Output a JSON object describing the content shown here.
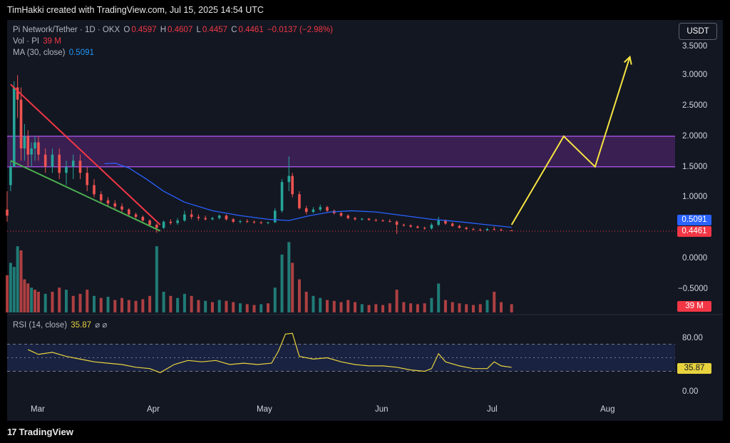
{
  "header": {
    "credit": "TimHakki created with TradingView.com, Jul 15, 2025 14:54 UTC"
  },
  "legend": {
    "symbol": "Pi Network/Tether · 1D · OKX",
    "open_label": "O",
    "open": "0.4597",
    "high_label": "H",
    "high": "0.4607",
    "low_label": "L",
    "low": "0.4457",
    "close_label": "C",
    "close": "0.4461",
    "change": "−0.0137 (−2.98%)",
    "vol_label": "Vol · PI",
    "vol_value": "39 M",
    "ma_label": "MA (30, close)",
    "ma_value": "0.5091",
    "rsi_label": "RSI (14, close)",
    "rsi_value": "35.87",
    "rsi_icons": "⌀ ⌀"
  },
  "currency_button": "USDT",
  "price_axis": [
    "3.5000",
    "3.0000",
    "2.5000",
    "2.0000",
    "1.5000",
    "1.0000",
    "0.0000",
    "−0.5000"
  ],
  "rsi_axis": [
    "80.00",
    "0.00"
  ],
  "tags": {
    "ma": "0.5091",
    "close": "0.4461",
    "volume": "39 M",
    "rsi": "35.87"
  },
  "time_axis": [
    "Mar",
    "Apr",
    "May",
    "Jun",
    "Jul",
    "Aug"
  ],
  "colors": {
    "up": "#26a69a",
    "down": "#ef5350",
    "ma": "#2962ff",
    "rsi": "#e8d33f",
    "zone": "#6a2a8f",
    "projection": "#f5e342",
    "wedge_top": "#f23645",
    "wedge_bottom": "#4caf50"
  },
  "footer": {
    "brand": "TradingView",
    "brand_icon": "17"
  },
  "chart_data": {
    "type": "candlestick",
    "symbol": "Pi Network/Tether",
    "interval": "1D",
    "x_range": [
      "2025-02-20",
      "2025-08-31"
    ],
    "y_range": [
      -0.75,
      3.75
    ],
    "zone": [
      1.5,
      2.0
    ],
    "projection_points": [
      [
        "2025-07-15",
        0.55
      ],
      [
        "2025-07-30",
        2.0
      ],
      [
        "2025-08-08",
        1.5
      ],
      [
        "2025-08-18",
        3.3
      ]
    ],
    "wedge_top": [
      [
        "2025-02-21",
        2.85
      ],
      [
        "2025-04-05",
        0.55
      ]
    ],
    "wedge_bottom": [
      [
        "2025-02-21",
        1.6
      ],
      [
        "2025-04-05",
        0.45
      ]
    ],
    "rsi_range": [
      0,
      100
    ],
    "rsi_bands": [
      70,
      50,
      30
    ],
    "candles": [
      [
        "2025-02-20",
        0.8,
        1.1,
        0.6,
        0.7
      ],
      [
        "2025-02-21",
        1.2,
        1.6,
        1.1,
        1.5
      ],
      [
        "2025-02-22",
        1.5,
        2.9,
        1.5,
        2.8
      ],
      [
        "2025-02-23",
        2.8,
        3.0,
        2.3,
        2.6
      ],
      [
        "2025-02-24",
        2.6,
        2.8,
        1.6,
        1.8
      ],
      [
        "2025-02-25",
        1.8,
        2.2,
        1.6,
        2.0
      ],
      [
        "2025-02-26",
        2.0,
        2.1,
        1.5,
        1.7
      ],
      [
        "2025-02-27",
        1.7,
        1.9,
        1.5,
        1.8
      ],
      [
        "2025-02-28",
        1.8,
        2.0,
        1.6,
        1.9
      ],
      [
        "2025-03-01",
        1.9,
        2.0,
        1.6,
        1.7
      ],
      [
        "2025-03-03",
        1.7,
        1.8,
        1.4,
        1.5
      ],
      [
        "2025-03-05",
        1.5,
        1.8,
        1.4,
        1.7
      ],
      [
        "2025-03-07",
        1.7,
        1.8,
        1.3,
        1.4
      ],
      [
        "2025-03-09",
        1.4,
        1.6,
        1.2,
        1.5
      ],
      [
        "2025-03-11",
        1.5,
        1.7,
        1.3,
        1.6
      ],
      [
        "2025-03-13",
        1.6,
        1.7,
        1.3,
        1.4
      ],
      [
        "2025-03-15",
        1.4,
        1.5,
        1.1,
        1.2
      ],
      [
        "2025-03-17",
        1.2,
        1.3,
        1.0,
        1.05
      ],
      [
        "2025-03-19",
        1.05,
        1.1,
        0.9,
        0.95
      ],
      [
        "2025-03-21",
        0.95,
        1.0,
        0.85,
        0.9
      ],
      [
        "2025-03-23",
        0.9,
        0.95,
        0.8,
        0.85
      ],
      [
        "2025-03-25",
        0.85,
        0.9,
        0.75,
        0.8
      ],
      [
        "2025-03-27",
        0.8,
        0.82,
        0.7,
        0.72
      ],
      [
        "2025-03-29",
        0.72,
        0.75,
        0.65,
        0.68
      ],
      [
        "2025-03-31",
        0.68,
        0.7,
        0.6,
        0.62
      ],
      [
        "2025-04-02",
        0.62,
        0.64,
        0.52,
        0.55
      ],
      [
        "2025-04-04",
        0.55,
        0.57,
        0.42,
        0.5
      ],
      [
        "2025-04-06",
        0.5,
        0.62,
        0.48,
        0.6
      ],
      [
        "2025-04-08",
        0.6,
        0.64,
        0.55,
        0.58
      ],
      [
        "2025-04-10",
        0.58,
        0.66,
        0.55,
        0.62
      ],
      [
        "2025-04-12",
        0.62,
        0.78,
        0.6,
        0.72
      ],
      [
        "2025-04-14",
        0.72,
        0.8,
        0.64,
        0.68
      ],
      [
        "2025-04-16",
        0.68,
        0.72,
        0.62,
        0.66
      ],
      [
        "2025-04-18",
        0.66,
        0.7,
        0.62,
        0.64
      ],
      [
        "2025-04-20",
        0.64,
        0.68,
        0.62,
        0.66
      ],
      [
        "2025-04-22",
        0.66,
        0.72,
        0.64,
        0.7
      ],
      [
        "2025-04-24",
        0.7,
        0.72,
        0.62,
        0.64
      ],
      [
        "2025-04-26",
        0.64,
        0.66,
        0.58,
        0.6
      ],
      [
        "2025-04-28",
        0.6,
        0.63,
        0.57,
        0.61
      ],
      [
        "2025-04-30",
        0.61,
        0.64,
        0.58,
        0.6
      ],
      [
        "2025-05-02",
        0.6,
        0.62,
        0.57,
        0.59
      ],
      [
        "2025-05-04",
        0.59,
        0.61,
        0.56,
        0.58
      ],
      [
        "2025-05-06",
        0.58,
        0.6,
        0.56,
        0.59
      ],
      [
        "2025-05-08",
        0.59,
        0.82,
        0.58,
        0.78
      ],
      [
        "2025-05-10",
        0.78,
        1.3,
        0.75,
        1.25
      ],
      [
        "2025-05-12",
        1.25,
        1.67,
        1.1,
        1.35
      ],
      [
        "2025-05-13",
        1.35,
        1.4,
        1.0,
        1.05
      ],
      [
        "2025-05-15",
        1.05,
        1.1,
        0.8,
        0.82
      ],
      [
        "2025-05-17",
        0.82,
        0.86,
        0.72,
        0.76
      ],
      [
        "2025-05-19",
        0.76,
        0.84,
        0.74,
        0.8
      ],
      [
        "2025-05-21",
        0.8,
        0.88,
        0.77,
        0.84
      ],
      [
        "2025-05-23",
        0.84,
        0.86,
        0.76,
        0.78
      ],
      [
        "2025-05-25",
        0.78,
        0.8,
        0.72,
        0.74
      ],
      [
        "2025-05-27",
        0.74,
        0.76,
        0.68,
        0.7
      ],
      [
        "2025-05-29",
        0.7,
        0.72,
        0.64,
        0.66
      ],
      [
        "2025-05-31",
        0.66,
        0.68,
        0.62,
        0.64
      ],
      [
        "2025-06-02",
        0.64,
        0.66,
        0.62,
        0.65
      ],
      [
        "2025-06-04",
        0.65,
        0.66,
        0.62,
        0.63
      ],
      [
        "2025-06-06",
        0.63,
        0.65,
        0.6,
        0.62
      ],
      [
        "2025-06-08",
        0.62,
        0.64,
        0.6,
        0.61
      ],
      [
        "2025-06-10",
        0.61,
        0.64,
        0.59,
        0.6
      ],
      [
        "2025-06-12",
        0.6,
        0.62,
        0.4,
        0.55
      ],
      [
        "2025-06-14",
        0.55,
        0.57,
        0.52,
        0.54
      ],
      [
        "2025-06-16",
        0.54,
        0.56,
        0.5,
        0.52
      ],
      [
        "2025-06-18",
        0.52,
        0.54,
        0.49,
        0.5
      ],
      [
        "2025-06-20",
        0.5,
        0.52,
        0.47,
        0.49
      ],
      [
        "2025-06-22",
        0.49,
        0.58,
        0.47,
        0.55
      ],
      [
        "2025-06-24",
        0.55,
        0.68,
        0.53,
        0.62
      ],
      [
        "2025-06-26",
        0.62,
        0.64,
        0.55,
        0.57
      ],
      [
        "2025-06-28",
        0.57,
        0.59,
        0.52,
        0.53
      ],
      [
        "2025-06-30",
        0.53,
        0.55,
        0.49,
        0.5
      ],
      [
        "2025-07-02",
        0.5,
        0.52,
        0.47,
        0.48
      ],
      [
        "2025-07-04",
        0.48,
        0.5,
        0.46,
        0.47
      ],
      [
        "2025-07-06",
        0.47,
        0.49,
        0.45,
        0.46
      ],
      [
        "2025-07-08",
        0.46,
        0.5,
        0.45,
        0.48
      ],
      [
        "2025-07-10",
        0.48,
        0.52,
        0.46,
        0.47
      ],
      [
        "2025-07-12",
        0.47,
        0.49,
        0.45,
        0.46
      ],
      [
        "2025-07-15",
        0.4597,
        0.4607,
        0.4457,
        0.4461
      ]
    ],
    "ma_points": [
      [
        "2025-03-20",
        1.55
      ],
      [
        "2025-03-23",
        1.56
      ],
      [
        "2025-03-27",
        1.48
      ],
      [
        "2025-04-01",
        1.3
      ],
      [
        "2025-04-06",
        1.1
      ],
      [
        "2025-04-12",
        0.92
      ],
      [
        "2025-04-20",
        0.78
      ],
      [
        "2025-04-28",
        0.7
      ],
      [
        "2025-05-06",
        0.64
      ],
      [
        "2025-05-12",
        0.62
      ],
      [
        "2025-05-18",
        0.7
      ],
      [
        "2025-05-24",
        0.76
      ],
      [
        "2025-05-30",
        0.78
      ],
      [
        "2025-06-06",
        0.76
      ],
      [
        "2025-06-14",
        0.7
      ],
      [
        "2025-06-22",
        0.64
      ],
      [
        "2025-06-30",
        0.6
      ],
      [
        "2025-07-08",
        0.55
      ],
      [
        "2025-07-15",
        0.5091
      ]
    ],
    "volume": [
      [
        "2025-02-20",
        90,
        "down"
      ],
      [
        "2025-02-21",
        120,
        "up"
      ],
      [
        "2025-02-22",
        110,
        "up"
      ],
      [
        "2025-02-23",
        160,
        "up"
      ],
      [
        "2025-02-24",
        150,
        "down"
      ],
      [
        "2025-02-25",
        80,
        "down"
      ],
      [
        "2025-02-26",
        70,
        "down"
      ],
      [
        "2025-02-27",
        60,
        "up"
      ],
      [
        "2025-02-28",
        55,
        "down"
      ],
      [
        "2025-03-01",
        50,
        "down"
      ],
      [
        "2025-03-03",
        45,
        "up"
      ],
      [
        "2025-03-05",
        50,
        "down"
      ],
      [
        "2025-03-07",
        60,
        "down"
      ],
      [
        "2025-03-09",
        55,
        "up"
      ],
      [
        "2025-03-11",
        40,
        "down"
      ],
      [
        "2025-03-13",
        45,
        "down"
      ],
      [
        "2025-03-15",
        55,
        "down"
      ],
      [
        "2025-03-17",
        40,
        "up"
      ],
      [
        "2025-03-19",
        35,
        "down"
      ],
      [
        "2025-03-21",
        38,
        "up"
      ],
      [
        "2025-03-23",
        30,
        "down"
      ],
      [
        "2025-03-25",
        35,
        "down"
      ],
      [
        "2025-03-27",
        30,
        "down"
      ],
      [
        "2025-03-29",
        28,
        "down"
      ],
      [
        "2025-03-31",
        32,
        "down"
      ],
      [
        "2025-04-02",
        40,
        "down"
      ],
      [
        "2025-04-04",
        160,
        "up"
      ],
      [
        "2025-04-06",
        50,
        "up"
      ],
      [
        "2025-04-08",
        40,
        "down"
      ],
      [
        "2025-04-10",
        35,
        "up"
      ],
      [
        "2025-04-12",
        45,
        "up"
      ],
      [
        "2025-04-14",
        40,
        "down"
      ],
      [
        "2025-04-16",
        30,
        "down"
      ],
      [
        "2025-04-18",
        28,
        "up"
      ],
      [
        "2025-04-20",
        25,
        "down"
      ],
      [
        "2025-04-22",
        30,
        "up"
      ],
      [
        "2025-04-24",
        28,
        "down"
      ],
      [
        "2025-04-26",
        25,
        "down"
      ],
      [
        "2025-04-28",
        22,
        "up"
      ],
      [
        "2025-04-30",
        20,
        "down"
      ],
      [
        "2025-05-02",
        18,
        "down"
      ],
      [
        "2025-05-04",
        20,
        "up"
      ],
      [
        "2025-05-06",
        22,
        "down"
      ],
      [
        "2025-05-08",
        60,
        "up"
      ],
      [
        "2025-05-10",
        140,
        "up"
      ],
      [
        "2025-05-12",
        170,
        "up"
      ],
      [
        "2025-05-13",
        120,
        "down"
      ],
      [
        "2025-05-15",
        80,
        "down"
      ],
      [
        "2025-05-17",
        50,
        "down"
      ],
      [
        "2025-05-19",
        40,
        "up"
      ],
      [
        "2025-05-21",
        35,
        "up"
      ],
      [
        "2025-05-23",
        30,
        "down"
      ],
      [
        "2025-05-25",
        28,
        "down"
      ],
      [
        "2025-05-27",
        25,
        "down"
      ],
      [
        "2025-05-29",
        30,
        "down"
      ],
      [
        "2025-05-31",
        25,
        "down"
      ],
      [
        "2025-06-02",
        20,
        "up"
      ],
      [
        "2025-06-04",
        18,
        "down"
      ],
      [
        "2025-06-06",
        20,
        "down"
      ],
      [
        "2025-06-08",
        18,
        "down"
      ],
      [
        "2025-06-10",
        22,
        "down"
      ],
      [
        "2025-06-12",
        55,
        "down"
      ],
      [
        "2025-06-14",
        25,
        "down"
      ],
      [
        "2025-06-16",
        22,
        "down"
      ],
      [
        "2025-06-18",
        20,
        "down"
      ],
      [
        "2025-06-20",
        22,
        "down"
      ],
      [
        "2025-06-22",
        35,
        "up"
      ],
      [
        "2025-06-24",
        70,
        "up"
      ],
      [
        "2025-06-26",
        30,
        "down"
      ],
      [
        "2025-06-28",
        25,
        "down"
      ],
      [
        "2025-06-30",
        22,
        "down"
      ],
      [
        "2025-07-02",
        20,
        "down"
      ],
      [
        "2025-07-04",
        18,
        "down"
      ],
      [
        "2025-07-06",
        20,
        "down"
      ],
      [
        "2025-07-08",
        30,
        "up"
      ],
      [
        "2025-07-10",
        50,
        "down"
      ],
      [
        "2025-07-12",
        25,
        "down"
      ],
      [
        "2025-07-15",
        20,
        "down"
      ]
    ],
    "rsi": [
      [
        "2025-02-26",
        62
      ],
      [
        "2025-03-01",
        55
      ],
      [
        "2025-03-05",
        58
      ],
      [
        "2025-03-09",
        52
      ],
      [
        "2025-03-13",
        48
      ],
      [
        "2025-03-17",
        44
      ],
      [
        "2025-03-21",
        42
      ],
      [
        "2025-03-25",
        40
      ],
      [
        "2025-03-29",
        36
      ],
      [
        "2025-04-02",
        34
      ],
      [
        "2025-04-05",
        28
      ],
      [
        "2025-04-09",
        40
      ],
      [
        "2025-04-13",
        46
      ],
      [
        "2025-04-17",
        44
      ],
      [
        "2025-04-21",
        46
      ],
      [
        "2025-04-25",
        40
      ],
      [
        "2025-04-29",
        42
      ],
      [
        "2025-05-03",
        40
      ],
      [
        "2025-05-07",
        42
      ],
      [
        "2025-05-09",
        60
      ],
      [
        "2025-05-11",
        85
      ],
      [
        "2025-05-13",
        86
      ],
      [
        "2025-05-15",
        52
      ],
      [
        "2025-05-19",
        48
      ],
      [
        "2025-05-23",
        50
      ],
      [
        "2025-05-27",
        44
      ],
      [
        "2025-05-31",
        40
      ],
      [
        "2025-06-04",
        38
      ],
      [
        "2025-06-08",
        38
      ],
      [
        "2025-06-12",
        36
      ],
      [
        "2025-06-16",
        32
      ],
      [
        "2025-06-20",
        30
      ],
      [
        "2025-06-22",
        34
      ],
      [
        "2025-06-24",
        56
      ],
      [
        "2025-06-26",
        44
      ],
      [
        "2025-06-30",
        38
      ],
      [
        "2025-07-04",
        34
      ],
      [
        "2025-07-08",
        34
      ],
      [
        "2025-07-10",
        44
      ],
      [
        "2025-07-12",
        38
      ],
      [
        "2025-07-15",
        35.87
      ]
    ]
  }
}
